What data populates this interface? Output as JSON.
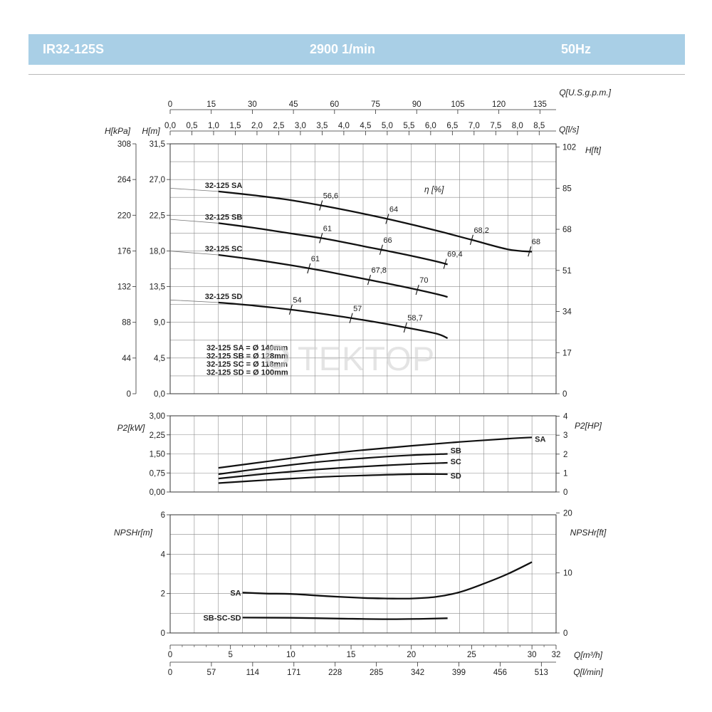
{
  "header": {
    "model": "IR32-125S",
    "speed": "2900 1/min",
    "frequency": "50Hz"
  },
  "watermark": "TEKTOP",
  "colors": {
    "header_bg": "#a9cfe6",
    "header_text": "#ffffff",
    "curve": "#111111",
    "grid": "#8a8a8a"
  },
  "axes": {
    "q_usgpm": {
      "label": "Q[U.S.g.p.m.]",
      "ticks": [
        "0",
        "15",
        "30",
        "45",
        "60",
        "75",
        "90",
        "105",
        "120",
        "135"
      ]
    },
    "q_ls": {
      "label": "Q[l/s]",
      "ticks": [
        "0,0",
        "0,5",
        "1,0",
        "1,5",
        "2,0",
        "2,5",
        "3,0",
        "3,5",
        "4,0",
        "4,5",
        "5,0",
        "5,5",
        "6,0",
        "6,5",
        "7,0",
        "7,5",
        "8,0",
        "8,5"
      ]
    },
    "h_kpa": {
      "label": "H[kPa]",
      "ticks": [
        "308",
        "264",
        "220",
        "176",
        "132",
        "88",
        "44",
        "0"
      ]
    },
    "h_m": {
      "label": "H[m]",
      "ticks": [
        "31,5",
        "27,0",
        "22,5",
        "18,0",
        "13,5",
        "9,0",
        "4,5",
        "0,0"
      ]
    },
    "h_ft": {
      "label": "H[ft]",
      "ticks": [
        "102",
        "85",
        "68",
        "51",
        "34",
        "17",
        "0"
      ]
    },
    "p2_kw": {
      "label": "P2[kW]",
      "ticks": [
        "3,00",
        "2,25",
        "1,50",
        "0,75",
        "0,00"
      ]
    },
    "p2_hp": {
      "label": "P2[HP]",
      "ticks": [
        "4",
        "3",
        "2",
        "1",
        "0"
      ]
    },
    "npsh_m": {
      "label": "NPSHr[m]",
      "ticks": [
        "6",
        "4",
        "2",
        "0"
      ]
    },
    "npsh_ft": {
      "label": "NPSHr[ft]",
      "ticks": [
        "20",
        "10",
        "0"
      ]
    },
    "q_m3h": {
      "label": "Q[m³/h]",
      "ticks": [
        "0",
        "5",
        "10",
        "15",
        "20",
        "25",
        "30",
        "32"
      ]
    },
    "q_lmin": {
      "label": "Q[l/min]",
      "ticks": [
        "0",
        "57",
        "114",
        "171",
        "228",
        "285",
        "342",
        "399",
        "456",
        "513"
      ]
    }
  },
  "legend_eff": "η [%]",
  "impellers": [
    "32-125 SA = Ø 140mm",
    "32-125 SB = Ø 128mm",
    "32-125 SC = Ø 118mm",
    "32-125 SD = Ø 100mm"
  ],
  "chart_data": [
    {
      "type": "line",
      "title": "",
      "xlabel": "Q[m³/h]",
      "ylabel": "H[m]",
      "xlim": [
        0,
        32
      ],
      "ylim": [
        0,
        31.5
      ],
      "grid": true,
      "series": [
        {
          "name": "32-125 SA",
          "x": [
            4,
            7,
            10,
            13,
            16,
            19,
            22,
            25,
            28,
            30
          ],
          "y": [
            25.5,
            25.0,
            24.4,
            23.6,
            22.7,
            21.7,
            20.6,
            19.4,
            18.2,
            17.9
          ]
        },
        {
          "name": "32-125 SB",
          "x": [
            4,
            7,
            10,
            13,
            16,
            19,
            22,
            23
          ],
          "y": [
            21.5,
            20.9,
            20.2,
            19.5,
            18.6,
            17.7,
            16.7,
            16.3
          ]
        },
        {
          "name": "32-125 SC",
          "x": [
            4,
            7,
            10,
            13,
            16,
            19,
            22,
            23
          ],
          "y": [
            17.5,
            16.9,
            16.2,
            15.4,
            14.5,
            13.6,
            12.6,
            12.2
          ]
        },
        {
          "name": "32-125 SD",
          "x": [
            4,
            7,
            10,
            13,
            16,
            19,
            22,
            23
          ],
          "y": [
            11.5,
            11.1,
            10.6,
            10.0,
            9.3,
            8.5,
            7.6,
            7.0
          ]
        }
      ],
      "efficiency_marks": [
        {
          "label": "56,6",
          "curve": "32-125 SA",
          "x": 12.5
        },
        {
          "label": "64",
          "curve": "32-125 SA",
          "x": 18.0
        },
        {
          "label": "68,2",
          "curve": "32-125 SA",
          "x": 25.0
        },
        {
          "label": "68",
          "curve": "32-125 SA",
          "x": 29.8
        },
        {
          "label": "61",
          "curve": "32-125 SB",
          "x": 12.5
        },
        {
          "label": "66",
          "curve": "32-125 SB",
          "x": 17.5
        },
        {
          "label": "69,4",
          "curve": "32-125 SB",
          "x": 22.8
        },
        {
          "label": "61",
          "curve": "32-125 SC",
          "x": 11.5
        },
        {
          "label": "67,8",
          "curve": "32-125 SC",
          "x": 16.5
        },
        {
          "label": "70",
          "curve": "32-125 SC",
          "x": 20.5
        },
        {
          "label": "54",
          "curve": "32-125 SD",
          "x": 10.0
        },
        {
          "label": "57",
          "curve": "32-125 SD",
          "x": 15.0
        },
        {
          "label": "58,7",
          "curve": "32-125 SD",
          "x": 19.5
        }
      ]
    },
    {
      "type": "line",
      "title": "",
      "xlabel": "Q[m³/h]",
      "ylabel": "P2[kW]",
      "xlim": [
        0,
        32
      ],
      "ylim": [
        0,
        3
      ],
      "grid": true,
      "series": [
        {
          "name": "SA",
          "x": [
            4,
            8,
            12,
            16,
            20,
            24,
            28,
            30
          ],
          "y": [
            0.95,
            1.2,
            1.45,
            1.65,
            1.82,
            1.97,
            2.1,
            2.15
          ]
        },
        {
          "name": "SB",
          "x": [
            4,
            8,
            12,
            16,
            20,
            23
          ],
          "y": [
            0.7,
            0.95,
            1.17,
            1.33,
            1.45,
            1.5
          ]
        },
        {
          "name": "SC",
          "x": [
            4,
            8,
            12,
            16,
            20,
            23
          ],
          "y": [
            0.53,
            0.72,
            0.88,
            1.0,
            1.1,
            1.15
          ]
        },
        {
          "name": "SD",
          "x": [
            4,
            8,
            12,
            16,
            20,
            23
          ],
          "y": [
            0.35,
            0.47,
            0.58,
            0.65,
            0.7,
            0.7
          ]
        }
      ]
    },
    {
      "type": "line",
      "title": "",
      "xlabel": "Q[m³/h]",
      "ylabel": "NPSHr[m]",
      "xlim": [
        0,
        32
      ],
      "ylim": [
        0,
        6
      ],
      "grid": true,
      "series": [
        {
          "name": "SA",
          "x": [
            6,
            8,
            10,
            13,
            16,
            18,
            20,
            22,
            24,
            26,
            28,
            30
          ],
          "y": [
            2.05,
            2.0,
            1.98,
            1.87,
            1.78,
            1.75,
            1.75,
            1.83,
            2.07,
            2.5,
            3.0,
            3.6
          ]
        },
        {
          "name": "SB-SC-SD",
          "x": [
            6,
            10,
            14,
            18,
            21,
            23
          ],
          "y": [
            0.78,
            0.77,
            0.73,
            0.7,
            0.72,
            0.75
          ]
        }
      ]
    }
  ]
}
